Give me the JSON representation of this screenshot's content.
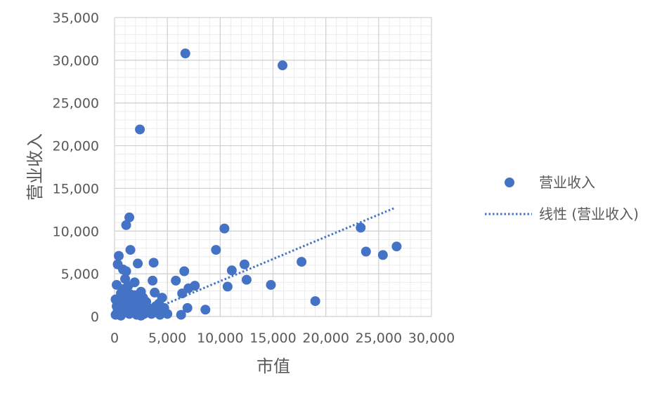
{
  "chart_data": {
    "type": "scatter",
    "xlabel": "市值",
    "ylabel": "营业收入",
    "xlim": [
      0,
      30000
    ],
    "ylim": [
      0,
      35000
    ],
    "x_ticks": [
      0,
      5000,
      10000,
      15000,
      20000,
      25000,
      30000
    ],
    "y_ticks": [
      0,
      5000,
      10000,
      15000,
      20000,
      25000,
      30000,
      35000
    ],
    "x_tick_labels": [
      "0",
      "5,000",
      "10,000",
      "15,000",
      "20,000",
      "25,000",
      "30,000"
    ],
    "y_tick_labels": [
      "0",
      "5,000",
      "10,000",
      "15,000",
      "20,000",
      "25,000",
      "30,000",
      "35,000"
    ],
    "grid": true,
    "minor_grid": true,
    "legend_position": "right",
    "series": [
      {
        "name": "营业收入",
        "color": "#4472C4",
        "points": [
          [
            6700,
            30800
          ],
          [
            15900,
            29400
          ],
          [
            2400,
            21900
          ],
          [
            1400,
            11600
          ],
          [
            1100,
            10700
          ],
          [
            10400,
            10300
          ],
          [
            23300,
            10400
          ],
          [
            23800,
            7600
          ],
          [
            25400,
            7200
          ],
          [
            26700,
            8200
          ],
          [
            9600,
            7800
          ],
          [
            1500,
            7800
          ],
          [
            400,
            7100
          ],
          [
            3700,
            6300
          ],
          [
            2200,
            6200
          ],
          [
            300,
            6100
          ],
          [
            12300,
            6100
          ],
          [
            17700,
            6400
          ],
          [
            1100,
            5300
          ],
          [
            6600,
            5300
          ],
          [
            11100,
            5400
          ],
          [
            800,
            5500
          ],
          [
            3600,
            4200
          ],
          [
            5800,
            4200
          ],
          [
            12500,
            4300
          ],
          [
            7600,
            3600
          ],
          [
            7000,
            3300
          ],
          [
            10700,
            3500
          ],
          [
            14800,
            3700
          ],
          [
            6400,
            2700
          ],
          [
            19000,
            1800
          ],
          [
            6900,
            1000
          ],
          [
            8600,
            800
          ],
          [
            6300,
            200
          ],
          [
            5000,
            300
          ],
          [
            4700,
            1000
          ],
          [
            4500,
            2200
          ],
          [
            3800,
            2800
          ],
          [
            2500,
            2900
          ],
          [
            1900,
            4000
          ],
          [
            1000,
            4400
          ],
          [
            1300,
            3600
          ],
          [
            800,
            3200
          ],
          [
            600,
            2700
          ],
          [
            200,
            3700
          ],
          [
            100,
            2000
          ],
          [
            200,
            1200
          ],
          [
            400,
            600
          ],
          [
            100,
            200
          ],
          [
            600,
            1500
          ],
          [
            900,
            2300
          ],
          [
            1200,
            1800
          ],
          [
            1500,
            2600
          ],
          [
            1700,
            1200
          ],
          [
            2000,
            1800
          ],
          [
            2300,
            900
          ],
          [
            2600,
            1400
          ],
          [
            2900,
            700
          ],
          [
            3200,
            1000
          ],
          [
            3500,
            300
          ],
          [
            4000,
            800
          ],
          [
            4300,
            200
          ],
          [
            700,
            400
          ],
          [
            1000,
            900
          ],
          [
            1400,
            300
          ],
          [
            1800,
            500
          ],
          [
            2100,
            200
          ],
          [
            2500,
            100
          ],
          [
            300,
            800
          ],
          [
            500,
            2100
          ],
          [
            800,
            800
          ],
          [
            1100,
            1300
          ],
          [
            1600,
            2000
          ],
          [
            1900,
            2500
          ],
          [
            2200,
            1500
          ],
          [
            2700,
            2200
          ],
          [
            3000,
            1700
          ],
          [
            3300,
            600
          ],
          [
            1300,
            500
          ],
          [
            600,
            100
          ],
          [
            1600,
            900
          ],
          [
            2400,
            600
          ],
          [
            2800,
            300
          ],
          [
            3900,
            1200
          ],
          [
            4200,
            1500
          ]
        ]
      },
      {
        "name": "线性 (营业收入)",
        "type": "line",
        "style": "dotted",
        "color": "#4472C4",
        "x": [
          3000,
          26500
        ],
        "y": [
          500,
          12700
        ]
      }
    ]
  }
}
